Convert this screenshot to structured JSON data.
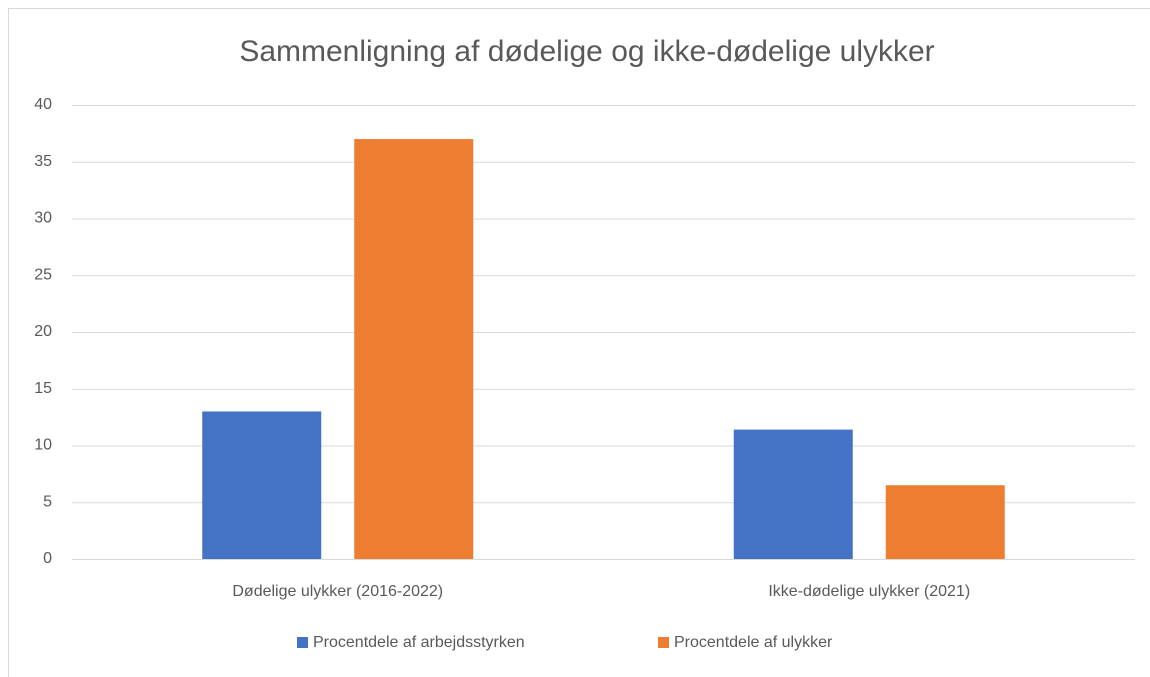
{
  "chart_data": {
    "type": "bar",
    "title": "Sammenligning af dødelige og ikke-dødelige ulykker",
    "categories": [
      "Dødelige ulykker (2016-2022)",
      "Ikke-dødelige ulykker (2021)"
    ],
    "series": [
      {
        "name": "Procentdele af arbejdsstyrken",
        "color": "#4472c4",
        "values": [
          13,
          11.4
        ]
      },
      {
        "name": "Procentdele af ulykker",
        "color": "#ed7d31",
        "values": [
          37,
          6.5
        ]
      }
    ],
    "ylim": [
      0,
      40
    ],
    "yticks": [
      0,
      5,
      10,
      15,
      20,
      25,
      30,
      35,
      40
    ],
    "grid": true,
    "legend": "bottom"
  }
}
